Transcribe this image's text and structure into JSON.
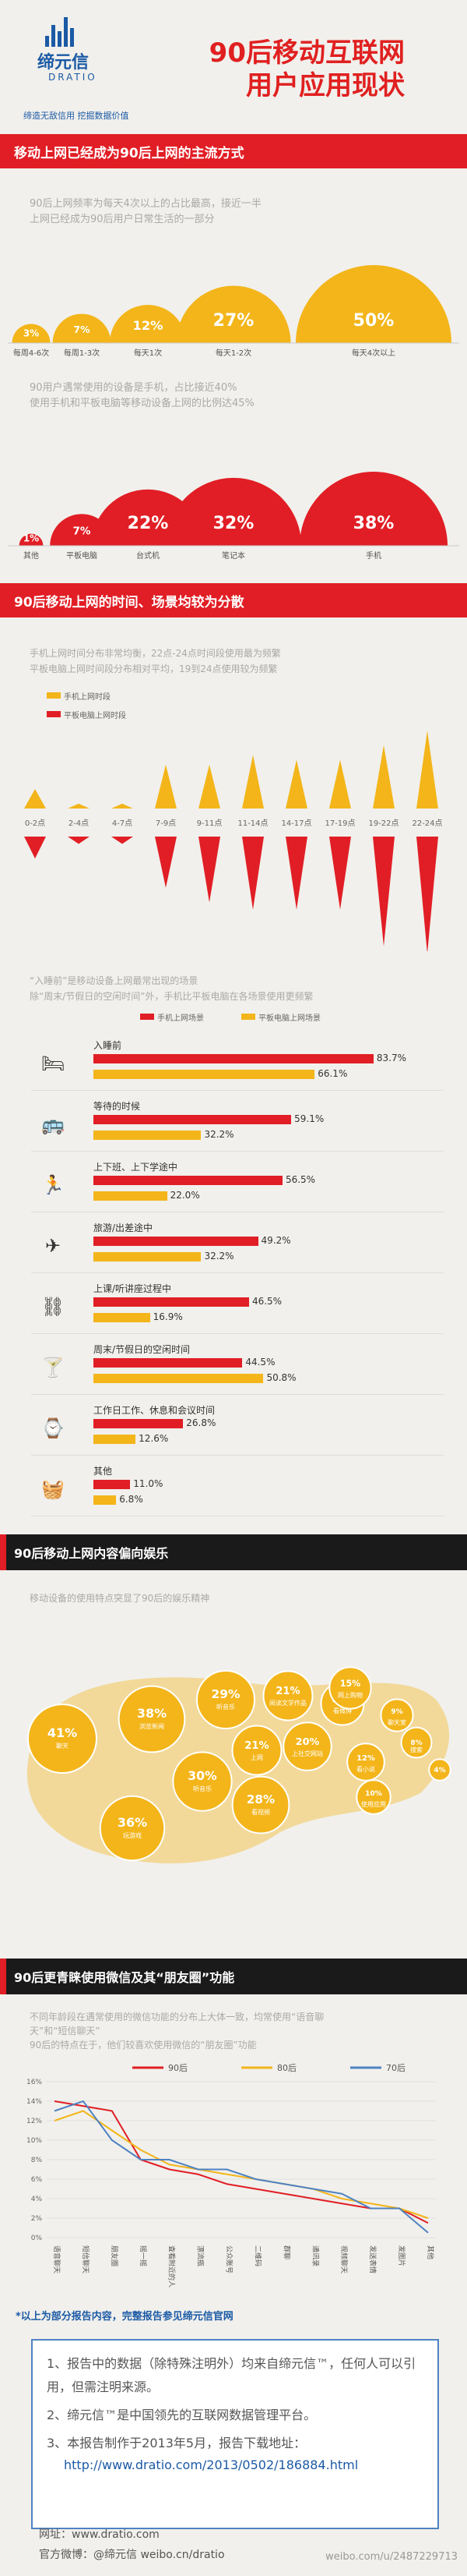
{
  "brand": {
    "name_cn": "缔元信",
    "name_en": "DRATIO",
    "slogan": "缔造无敌信用   挖掘数据价值"
  },
  "title": {
    "line1": "90后移动互联网",
    "line2": "用户应用现状"
  },
  "section1": {
    "heading": "移动上网已经成为90后上网的主流方式",
    "desc1": [
      "90后上网频率为每天4次以上的占比最高，接近一半",
      "上网已经成为90后用户日常生活的一部分"
    ],
    "desc2": [
      "90用户遇常使用的设备是手机，占比接近40%",
      "使用手机和平板电脑等移动设备上网的比例达45%"
    ]
  },
  "section2": {
    "heading": "90后移动上网的时间、场景均较为分散",
    "desc": [
      "手机上网时间分布非常均衡，22点-24点时间段使用最为频繁",
      "平板电脑上网时间段分布相对平均，19到24点使用较为频繁"
    ],
    "scene_desc": [
      "“入睡前”是移动设备上网最常出现的场景",
      "除“周末/节假日的空闲时间”外，手机比平板电脑在各场景使用更频繁"
    ]
  },
  "section3": {
    "heading": "90后移动上网内容偏向娱乐",
    "desc": "移动设备的使用特点突显了90后的娱乐精神"
  },
  "section4": {
    "heading": "90后更青睐使用微信及其“朋友圈”功能",
    "desc": [
      "不同年龄段在遇常使用的微信功能的分布上大体一致，均常使用“语音聊",
      "天”和“短信聊天”",
      "90后的特点在于，他们较喜欢使用微信的“朋友圈”功能"
    ]
  },
  "footer": {
    "note": "*以上为部分报告内容，完整报告参见缔元信官网",
    "items": [
      "1、报告中的数据（除特殊注明外）均来自缔元信™，任何人可以引",
      "用，但需注明来源。",
      "2、缔元信™是中国领先的互联网数据管理平台。",
      "3、本报告制作于2013年5月，报告下载地址：",
      "http://www.dratio.com/2013/0502/186884.html"
    ],
    "site": "网址：www.dratio.com",
    "weibo_official": "官方微博：@缔元信    weibo.cn/dratio",
    "watermark": "weibo.com/u/2487229713"
  },
  "colors": {
    "red": "#e11e25",
    "yellow": "#f3b51a",
    "blue": "#4f82c2",
    "dark": "#1a1a1a"
  },
  "chart_data": [
    {
      "type": "bar",
      "title": "",
      "categories": [
        "每周4-6次",
        "每周1-3次",
        "每天1次",
        "每天1-2次",
        "每天4次以上"
      ],
      "values": [
        3,
        7,
        12,
        27,
        50
      ],
      "labels": [
        "3%",
        "7%",
        "12%",
        "27%",
        "50%"
      ],
      "color": "#f3b51a"
    },
    {
      "type": "bar",
      "title": "",
      "categories": [
        "其他",
        "平板电脑",
        "台式机",
        "笔记本",
        "手机"
      ],
      "values": [
        1,
        7,
        22,
        32,
        38
      ],
      "labels": [
        "1%",
        "7%",
        "22%",
        "32%",
        "38%"
      ],
      "color": "#e11e25"
    },
    {
      "type": "bar",
      "title": "",
      "categories": [
        "0-2点",
        "2-4点",
        "4-7点",
        "7-9点",
        "9-11点",
        "11-14点",
        "14-17点",
        "17-19点",
        "19-22点",
        "22-24点"
      ],
      "series": [
        {
          "name": "手机上网时段",
          "values": [
            4,
            1,
            1,
            9,
            9,
            11,
            10,
            10,
            13,
            16
          ],
          "color": "#f3b51a"
        },
        {
          "name": "平板电脑上网时段",
          "values": [
            3,
            1,
            1,
            7,
            9,
            10,
            10,
            10,
            15,
            16
          ],
          "color": "#e11e25"
        }
      ]
    },
    {
      "type": "bar",
      "title": "",
      "categories": [
        "入睡前",
        "等待的时候",
        "上下班、上下学途中",
        "旅游/出差途中",
        "上课/听讲座过程中",
        "周末/节假日的空闲时间",
        "工作日工作、休息和会议时间",
        "其他"
      ],
      "series": [
        {
          "name": "手机上网场景",
          "values": [
            83.7,
            59.1,
            56.5,
            49.2,
            46.5,
            44.5,
            26.8,
            11.0
          ],
          "color": "#e11e25"
        },
        {
          "name": "平板电脑上网场景",
          "values": [
            66.1,
            32.2,
            22.0,
            32.2,
            16.9,
            50.8,
            12.6,
            6.8
          ],
          "color": "#f3b51a"
        }
      ],
      "labels": {
        "手机上网场景": [
          "83.7%",
          "59.1%",
          "56.5%",
          "49.2%",
          "46.5%",
          "44.5%",
          "26.8%",
          "11.0%"
        ],
        "平板电脑上网场景": [
          "66.1%",
          "32.2%",
          "22.0%",
          "32.2%",
          "16.9%",
          "50.8%",
          "12.6%",
          "6.8%"
        ]
      }
    },
    {
      "type": "scatter",
      "title": "",
      "bubbles": [
        {
          "label": "聊天",
          "value": 41,
          "text": "41%"
        },
        {
          "label": "浏览新闻",
          "value": 38,
          "text": "38%"
        },
        {
          "label": "玩游戏",
          "value": 36,
          "text": "36%"
        },
        {
          "label": "听音乐",
          "value": 30,
          "text": "30%"
        },
        {
          "label": "听音乐",
          "value": 29,
          "text": "29%"
        },
        {
          "label": "看视频",
          "value": 28,
          "text": "28%"
        },
        {
          "label": "阅读文学作品",
          "value": 21,
          "text": "21%"
        },
        {
          "label": "上网",
          "value": 21,
          "text": "21%"
        },
        {
          "label": "上社交网站",
          "value": 20,
          "text": "20%"
        },
        {
          "label": "看微博",
          "value": 16,
          "text": "16%"
        },
        {
          "label": "网上购物",
          "value": 15,
          "text": "15%"
        },
        {
          "label": "看小说",
          "value": 12,
          "text": "12%"
        },
        {
          "label": "使用应用",
          "value": 10,
          "text": "10%"
        },
        {
          "label": "聊天室",
          "value": 9,
          "text": "9%"
        },
        {
          "label": "搜索",
          "value": 8,
          "text": "8%"
        },
        {
          "label": "其他",
          "value": 4,
          "text": "4%"
        }
      ]
    },
    {
      "type": "line",
      "title": "",
      "categories": [
        "语音聊天",
        "短信聊天",
        "朋友圈",
        "摇一摇",
        "查看附近的人",
        "漂流瓶",
        "公众账号",
        "二维码",
        "群聊",
        "通讯录",
        "视频聊天",
        "发送表情",
        "发图片",
        "其他"
      ],
      "series": [
        {
          "name": "90后",
          "values": [
            14,
            13.5,
            13,
            8,
            7,
            6.5,
            5.5,
            5,
            4.5,
            4,
            3.5,
            3,
            3,
            1.5
          ],
          "color": "#e11e25"
        },
        {
          "name": "80后",
          "values": [
            12,
            13,
            11,
            9,
            7.5,
            7,
            6.5,
            6,
            5.5,
            5,
            4,
            3.5,
            3,
            2
          ],
          "color": "#f3b51a"
        },
        {
          "name": "70后",
          "values": [
            13,
            14,
            10,
            8,
            8,
            7,
            7,
            6,
            5.5,
            5,
            4.5,
            3,
            3,
            0.5
          ],
          "color": "#4f82c2"
        }
      ],
      "ylim": [
        0,
        16
      ],
      "yticks": [
        "0%",
        "2%",
        "4%",
        "6%",
        "8%",
        "10%",
        "12%",
        "14%",
        "16%"
      ]
    }
  ]
}
